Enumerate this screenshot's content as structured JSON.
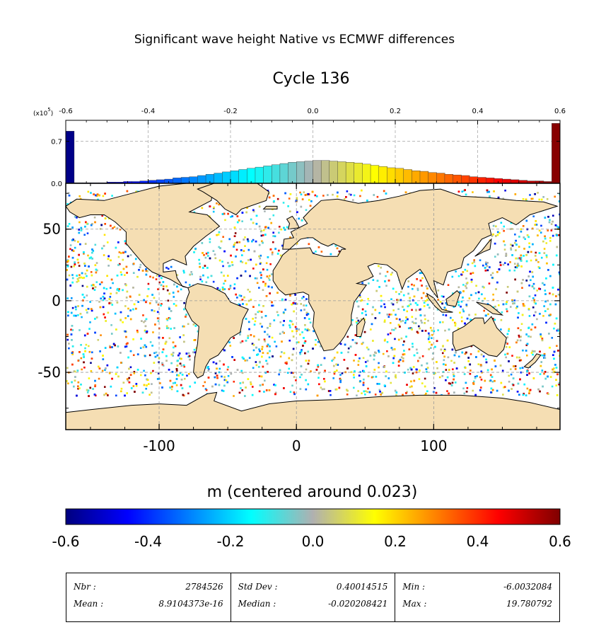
{
  "figure": {
    "suptitle": "Significant wave height Native vs ECMWF differences",
    "title": "Cycle 136"
  },
  "colors": {
    "land": "#f5deb3",
    "colormap": [
      "#00007f",
      "#0000ff",
      "#0080ff",
      "#00ffff",
      "#b0b0b0",
      "#ffff00",
      "#ff8000",
      "#ff0000",
      "#7f0000"
    ]
  },
  "chart_data": [
    {
      "type": "bar",
      "name": "histogram",
      "multiplier_label": "(x10",
      "multiplier_exp": "5",
      "multiplier_close": ")",
      "x_ticks": [
        "-0.6",
        "-0.4",
        "-0.2",
        "0.0",
        "0.2",
        "0.4",
        "0.6"
      ],
      "x_tick_values": [
        -0.6,
        -0.4,
        -0.2,
        0.0,
        0.2,
        0.4,
        0.6
      ],
      "y_ticks": [
        "0.0",
        "0.7"
      ],
      "y_tick_values": [
        0.0,
        0.7
      ],
      "xlim": [
        -0.6,
        0.6
      ],
      "ylim": [
        0,
        1.05
      ],
      "grid": true,
      "bin_width": 0.02,
      "values": [
        0.87,
        0.01,
        0.01,
        0.01,
        0.01,
        0.02,
        0.02,
        0.03,
        0.03,
        0.04,
        0.05,
        0.06,
        0.07,
        0.09,
        0.1,
        0.11,
        0.13,
        0.15,
        0.17,
        0.19,
        0.21,
        0.23,
        0.25,
        0.27,
        0.29,
        0.31,
        0.33,
        0.35,
        0.36,
        0.37,
        0.38,
        0.38,
        0.37,
        0.36,
        0.35,
        0.34,
        0.32,
        0.3,
        0.28,
        0.26,
        0.25,
        0.23,
        0.21,
        0.2,
        0.18,
        0.17,
        0.15,
        0.14,
        0.13,
        0.11,
        0.1,
        0.09,
        0.08,
        0.07,
        0.06,
        0.05,
        0.04,
        0.04,
        0.03,
        1.0
      ]
    },
    {
      "type": "scatter",
      "name": "map",
      "x_ticks": [
        "-100",
        "0",
        "100"
      ],
      "x_tick_values": [
        -100,
        0,
        100
      ],
      "y_ticks": [
        "50",
        "0",
        "-50"
      ],
      "y_tick_values": [
        50,
        0,
        -50
      ],
      "xlim": [
        -168,
        192
      ],
      "ylim": [
        -90,
        82
      ],
      "lat_coverage": [
        -66,
        78
      ],
      "grid": true
    }
  ],
  "colorbar": {
    "label": "m (centered around 0.023)",
    "ticks": [
      "-0.6",
      "-0.4",
      "-0.2",
      "0.0",
      "0.2",
      "0.4",
      "0.6"
    ],
    "range": [
      -0.6,
      0.6
    ]
  },
  "stats": {
    "nbr_label": "Nbr :",
    "nbr_value": "2784526",
    "mean_label": "Mean :",
    "mean_value": "8.9104373e-16",
    "std_label": "Std Dev :",
    "std_value": "0.40014515",
    "median_label": "Median :",
    "median_value": "-0.020208421",
    "min_label": "Min :",
    "min_value": "-6.0032084",
    "max_label": "Max :",
    "max_value": "19.780792"
  }
}
